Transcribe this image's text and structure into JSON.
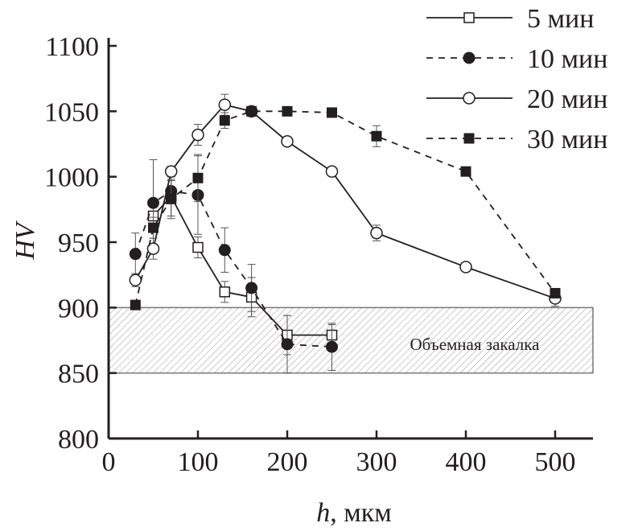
{
  "chart_data": {
    "type": "line",
    "title": "",
    "xlabel_var": "h",
    "xlabel_unit": ", мкм",
    "ylabel": "HV",
    "xlim": [
      0,
      545
    ],
    "ylim": [
      800,
      1100
    ],
    "x_ticks": [
      0,
      100,
      200,
      300,
      400,
      500
    ],
    "y_ticks": [
      800,
      850,
      900,
      950,
      1000,
      1050,
      1100
    ],
    "grid": false,
    "legend_position": "top-right",
    "band": {
      "from": 850,
      "to": 900,
      "label": "Объемная закалка",
      "pattern": "hatched"
    },
    "series": [
      {
        "name": "5 мин",
        "marker": "open-square",
        "line": "solid",
        "x": [
          50,
          70,
          100,
          130,
          160,
          200,
          250
        ],
        "y": [
          970,
          985,
          946,
          912,
          908,
          879,
          879
        ],
        "err": [
          8,
          15,
          8,
          8,
          15,
          15,
          8
        ]
      },
      {
        "name": "10 мин",
        "marker": "filled-circle",
        "line": "dashed",
        "x": [
          30,
          50,
          70,
          100,
          130,
          160,
          200,
          250
        ],
        "y": [
          941,
          980,
          989,
          986,
          944,
          915,
          872,
          870
        ],
        "err": [
          16,
          33,
          8,
          30,
          17,
          18,
          22,
          18
        ]
      },
      {
        "name": "20 мин",
        "marker": "open-circle",
        "line": "solid",
        "x": [
          30,
          50,
          70,
          100,
          130,
          160,
          200,
          250,
          300,
          400,
          500
        ],
        "y": [
          921,
          945,
          1004,
          1032,
          1055,
          1050,
          1027,
          1004,
          957,
          931,
          907
        ],
        "err": [
          5,
          8,
          4,
          8,
          8,
          3,
          3,
          2,
          6,
          3,
          6
        ]
      },
      {
        "name": "30 мин",
        "marker": "filled-square",
        "line": "dashed",
        "x": [
          30,
          50,
          70,
          100,
          130,
          160,
          200,
          250,
          300,
          400,
          500
        ],
        "y": [
          902,
          961,
          983,
          999,
          1043,
          1050,
          1050,
          1049,
          1031,
          1004,
          911
        ],
        "err": [
          0,
          8,
          15,
          18,
          6,
          3,
          2,
          2,
          8,
          3,
          3
        ]
      }
    ]
  }
}
